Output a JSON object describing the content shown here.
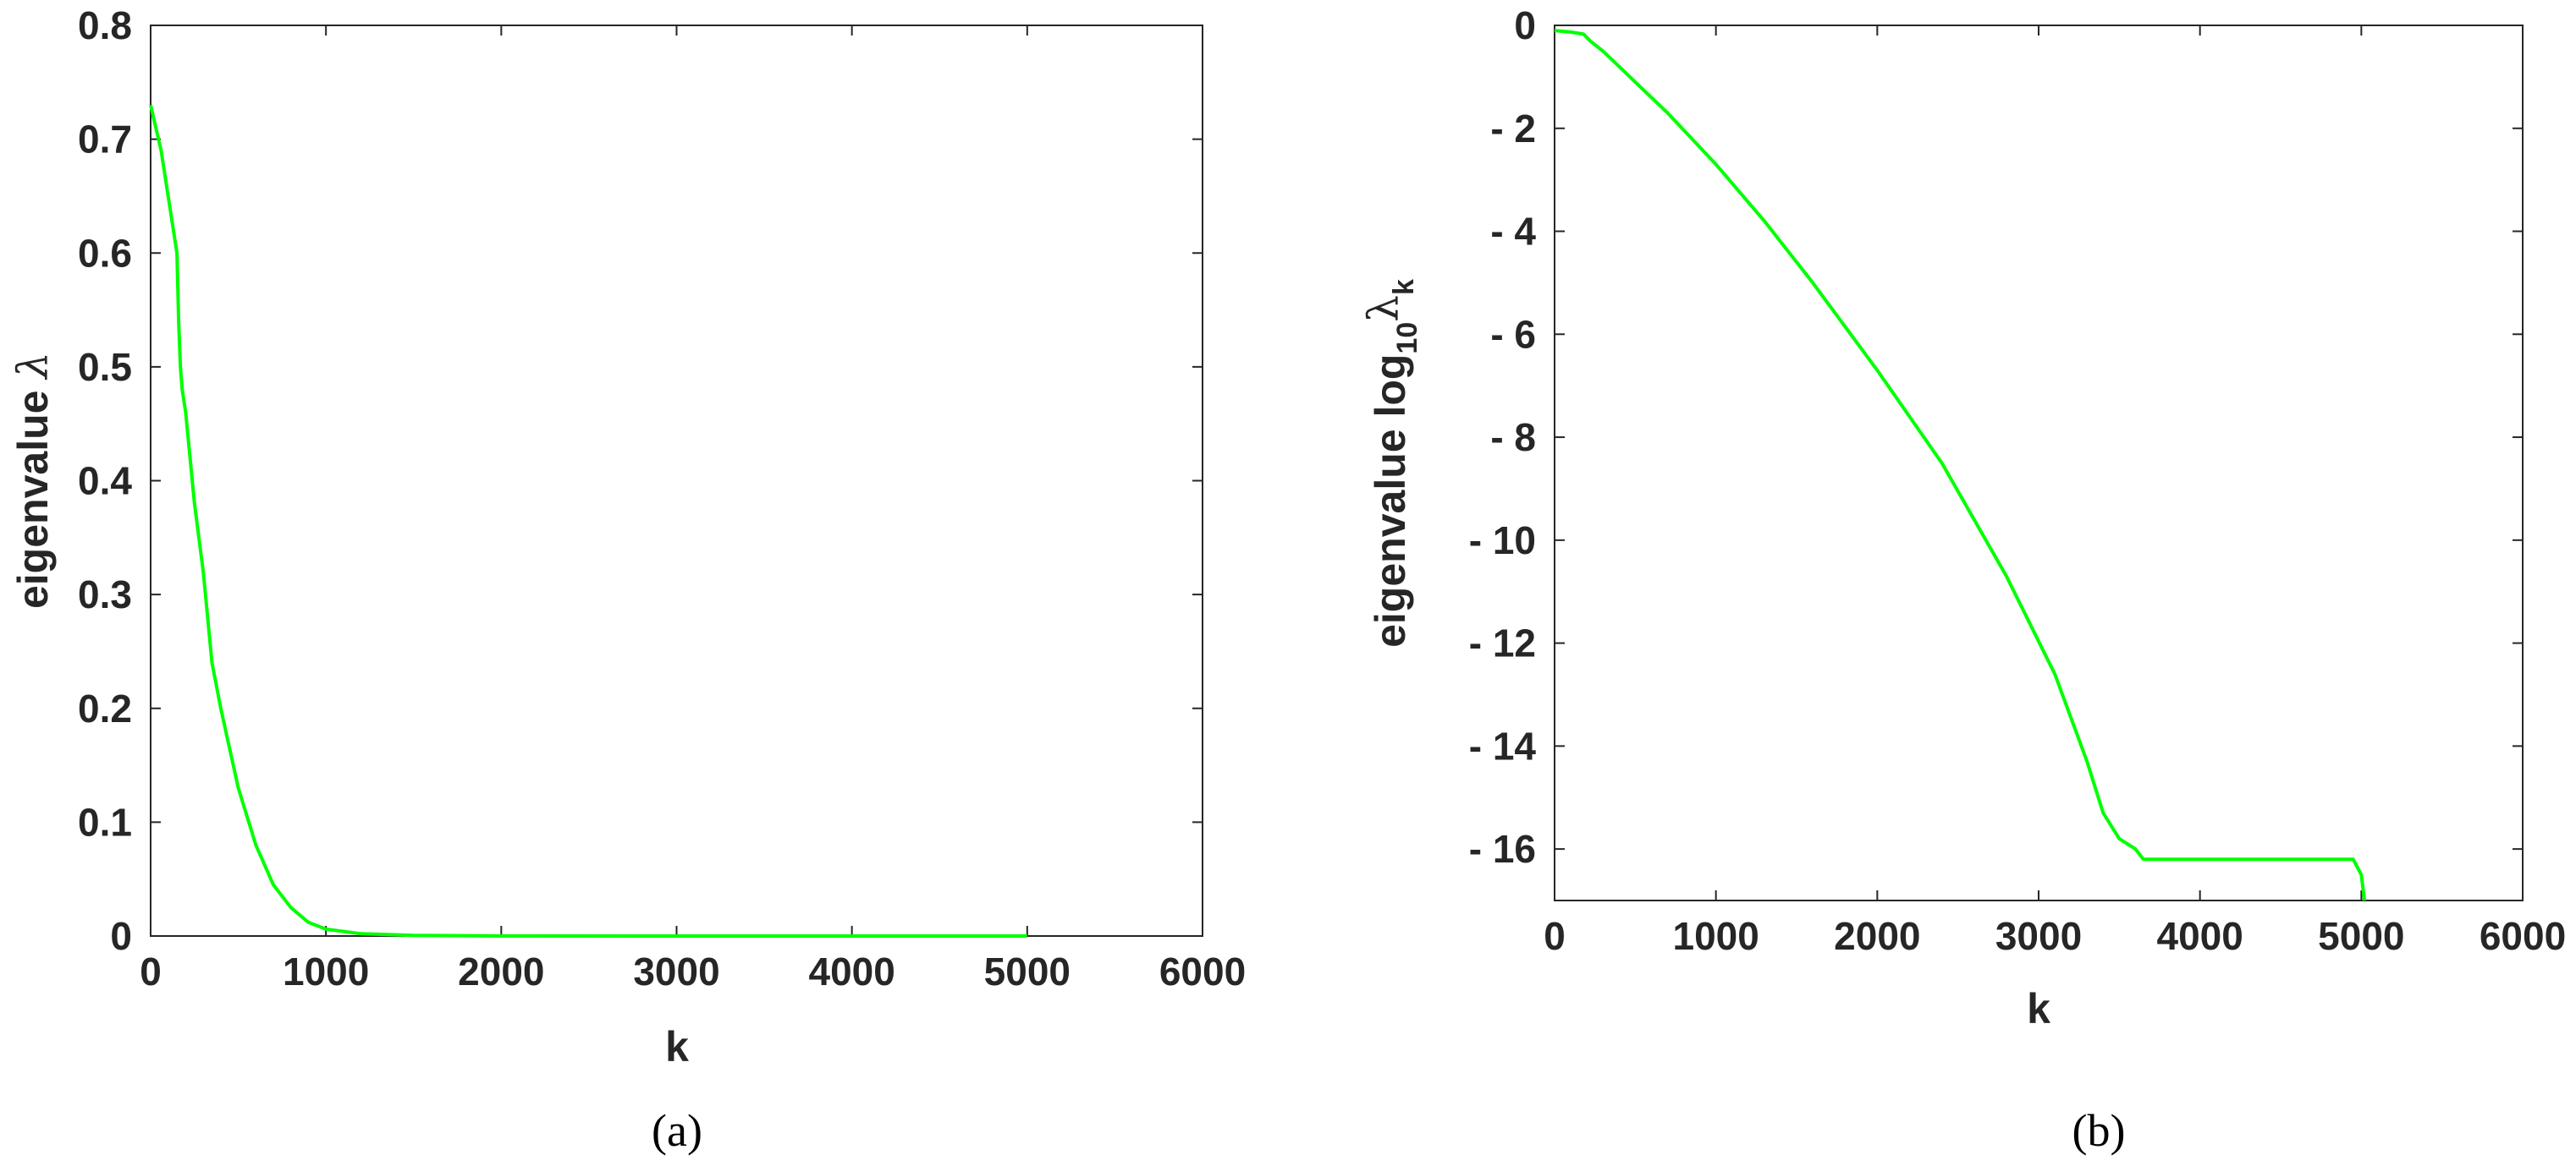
{
  "figure": {
    "captions": [
      "(a)",
      "(b)"
    ]
  },
  "chart_data": [
    {
      "type": "line",
      "xlabel": "k",
      "ylabel_main": "eigenvalue ",
      "ylabel_symbol": "λ",
      "xlim": [
        0,
        6000
      ],
      "ylim": [
        0,
        0.8
      ],
      "xticks": [
        0,
        1000,
        2000,
        3000,
        4000,
        5000,
        6000
      ],
      "xtick_labels": [
        "0",
        "1000",
        "2000",
        "3000",
        "4000",
        "5000",
        "6000"
      ],
      "yticks": [
        0,
        0.1,
        0.2,
        0.3,
        0.4,
        0.5,
        0.6,
        0.7,
        0.8
      ],
      "ytick_labels": [
        "0",
        "0.1",
        "0.2",
        "0.3",
        "0.4",
        "0.5",
        "0.6",
        "0.7",
        "0.8"
      ],
      "grid": false,
      "color": "#00ff00",
      "series": [
        {
          "x": [
            0,
            30,
            60,
            100,
            150,
            160,
            170,
            180,
            200,
            250,
            300,
            350,
            400,
            500,
            600,
            700,
            800,
            900,
            1000,
            1200,
            1500,
            2000,
            3000,
            4000,
            5000
          ],
          "y": [
            0.73,
            0.71,
            0.69,
            0.65,
            0.6,
            0.54,
            0.5,
            0.48,
            0.46,
            0.38,
            0.32,
            0.24,
            0.2,
            0.13,
            0.08,
            0.045,
            0.025,
            0.012,
            0.006,
            0.002,
            0.0005,
            0.0001,
            0,
            0,
            0
          ]
        }
      ]
    },
    {
      "type": "line",
      "xlabel": "k",
      "ylabel_main": "eigenvalue log",
      "ylabel_sub1": "10",
      "ylabel_symbol": "λ",
      "ylabel_sub2": "k",
      "xlim": [
        0,
        6000
      ],
      "ylim": [
        -17,
        0
      ],
      "xticks": [
        0,
        1000,
        2000,
        3000,
        4000,
        5000,
        6000
      ],
      "xtick_labels": [
        "0",
        "1000",
        "2000",
        "3000",
        "4000",
        "5000",
        "6000"
      ],
      "yticks": [
        0,
        -2,
        -4,
        -6,
        -8,
        -10,
        -12,
        -14,
        -16
      ],
      "ytick_labels": [
        "0",
        "- 2",
        "- 4",
        "- 6",
        "- 8",
        "- 10",
        "- 12",
        "- 14",
        "- 16"
      ],
      "grid": false,
      "color": "#00ff00",
      "series": [
        {
          "x": [
            0,
            100,
            180,
            220,
            300,
            500,
            700,
            1000,
            1300,
            1600,
            2000,
            2400,
            2800,
            3100,
            3300,
            3400,
            3500,
            3600,
            3650,
            3700,
            4000,
            4500,
            4950,
            5000,
            5020
          ],
          "y": [
            -0.1,
            -0.13,
            -0.17,
            -0.3,
            -0.5,
            -1.1,
            -1.7,
            -2.7,
            -3.8,
            -5.0,
            -6.7,
            -8.5,
            -10.7,
            -12.6,
            -14.3,
            -15.3,
            -15.8,
            -16.0,
            -16.2,
            -16.2,
            -16.2,
            -16.2,
            -16.2,
            -16.5,
            -17.0
          ]
        }
      ]
    }
  ]
}
